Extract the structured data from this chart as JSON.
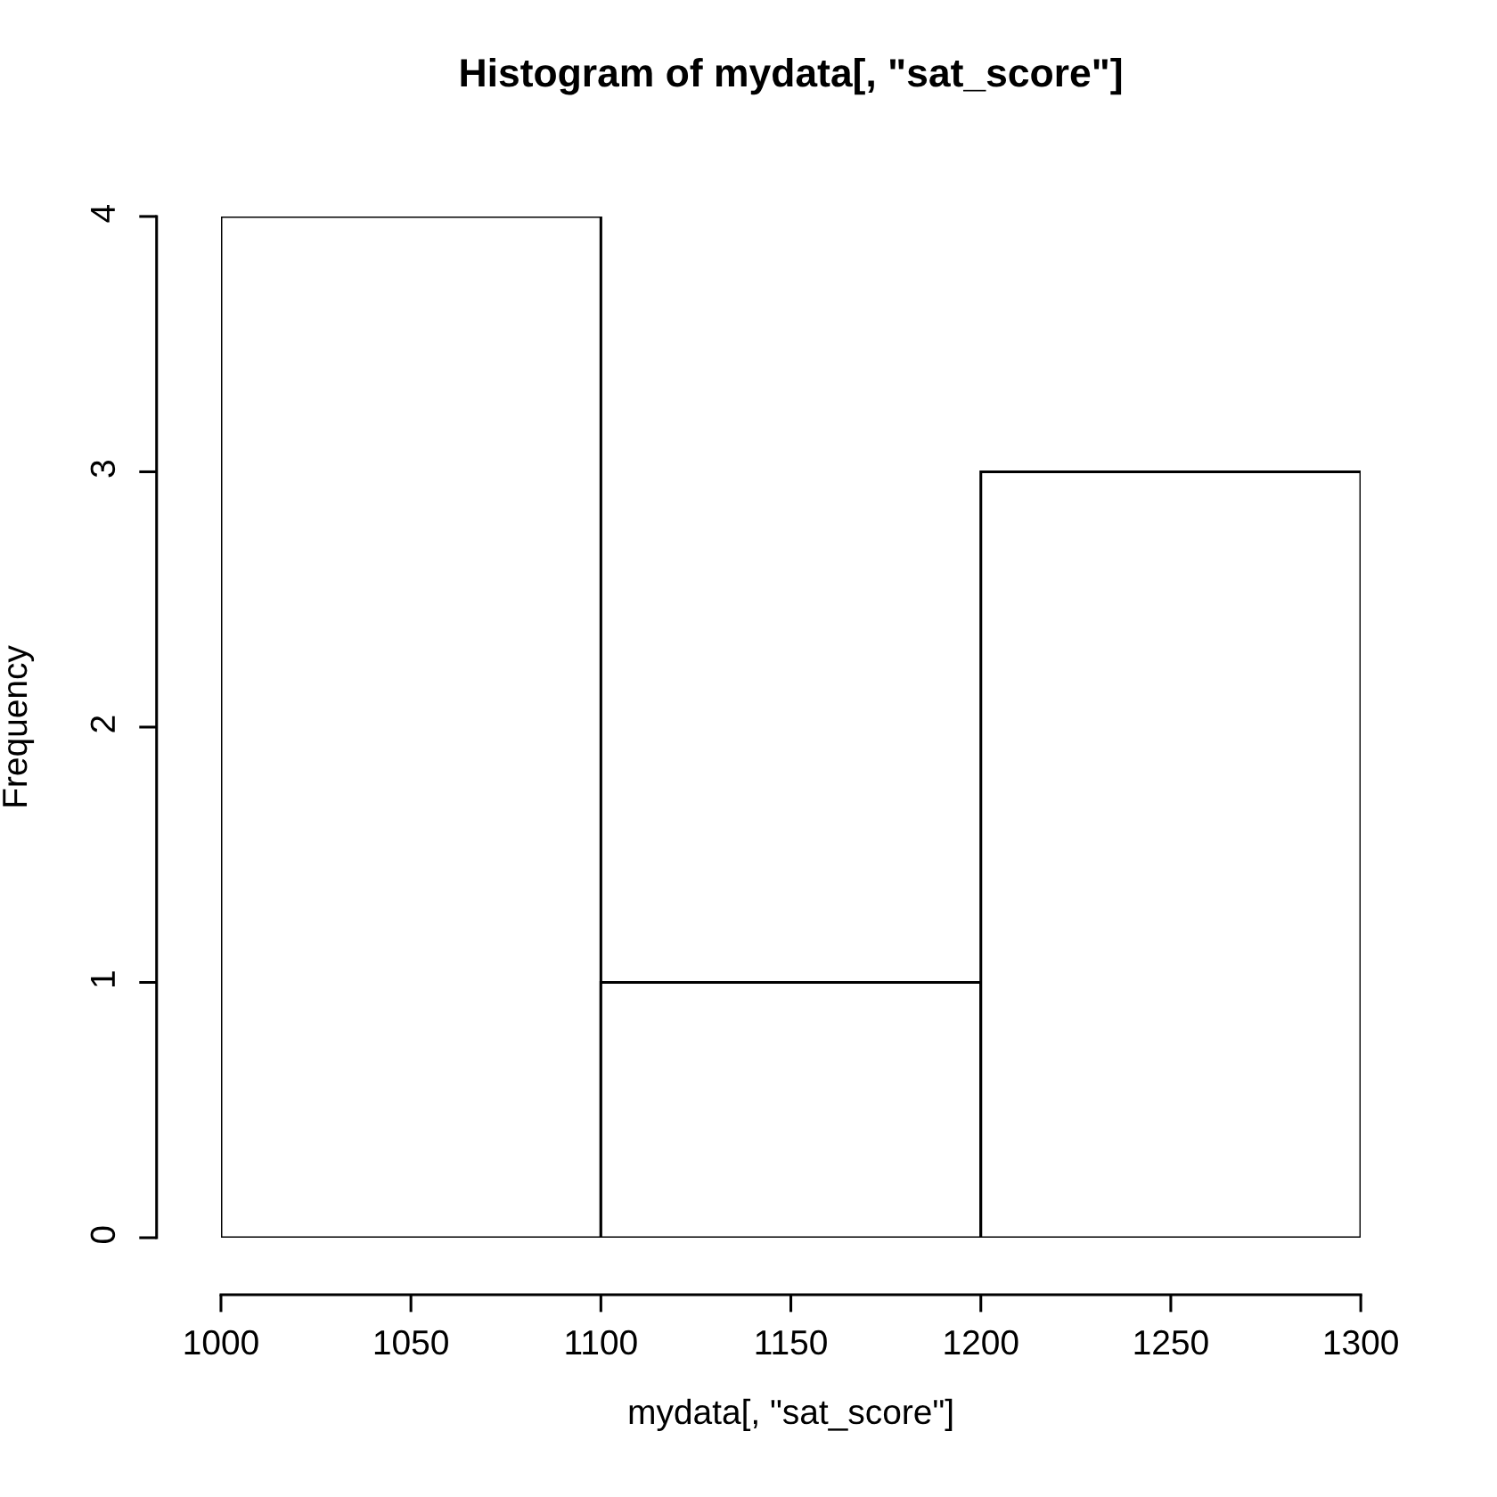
{
  "chart_data": {
    "type": "histogram",
    "title": "Histogram of mydata[, \"sat_score\"]",
    "xlabel": "mydata[, \"sat_score\"]",
    "ylabel": "Frequency",
    "bins": [
      1000,
      1100,
      1200,
      1300
    ],
    "values": [
      4,
      1,
      3
    ],
    "color": "#ffffff",
    "xlim": [
      1000,
      1300
    ],
    "xticks": [
      1000,
      1050,
      1100,
      1150,
      1200,
      1250,
      1300
    ],
    "ylim": [
      0,
      4
    ],
    "yticks": [
      0,
      1,
      2,
      3,
      4
    ],
    "grid": false,
    "legend": false
  }
}
